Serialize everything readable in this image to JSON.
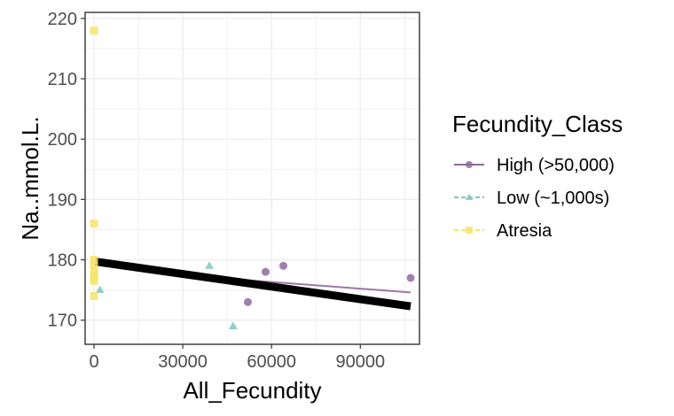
{
  "chart_data": {
    "type": "scatter",
    "xlabel": "All_Fecundity",
    "ylabel": "Na..mmol.L.",
    "xlim": [
      -3000,
      110000
    ],
    "ylim": [
      166,
      221
    ],
    "xticks": [
      0,
      30000,
      60000,
      90000
    ],
    "xtick_labels": [
      "0",
      "30000",
      "60000",
      "90000"
    ],
    "yticks": [
      170,
      180,
      190,
      200,
      210,
      220
    ],
    "ytick_labels": [
      "170",
      "180",
      "190",
      "200",
      "210",
      "220"
    ],
    "grid": true,
    "legend": {
      "title": "Fecundity_Class",
      "position": "right"
    },
    "series": [
      {
        "name": "High (>50,000)",
        "marker": "circle",
        "color": "#8e6a9e",
        "points": [
          {
            "x": 52000,
            "y": 173
          },
          {
            "x": 58000,
            "y": 178
          },
          {
            "x": 64000,
            "y": 179
          },
          {
            "x": 107000,
            "y": 177
          }
        ],
        "fit": {
          "x": [
            47000,
            107000
          ],
          "y": [
            176.8,
            174.6
          ]
        }
      },
      {
        "name": "Low (~1,000s)",
        "marker": "triangle",
        "color": "#7ec8c0",
        "points": [
          {
            "x": 2000,
            "y": 175
          },
          {
            "x": 39000,
            "y": 179
          },
          {
            "x": 47000,
            "y": 169
          }
        ],
        "fit": {
          "x": [
            45000,
            50000
          ],
          "y": [
            176.4,
            176.3
          ]
        }
      },
      {
        "name": "Atresia",
        "marker": "square",
        "color": "#f7e46b",
        "points": [
          {
            "x": 0,
            "y": 218
          },
          {
            "x": 0,
            "y": 186
          },
          {
            "x": 0,
            "y": 180
          },
          {
            "x": 0,
            "y": 179
          },
          {
            "x": 0,
            "y": 178
          },
          {
            "x": 0,
            "y": 177.5
          },
          {
            "x": 0,
            "y": 177
          },
          {
            "x": 0,
            "y": 176.5
          },
          {
            "x": 0,
            "y": 174
          }
        ],
        "fit": {
          "x": [
            -500,
            500
          ],
          "y": [
            177,
            177
          ]
        }
      }
    ],
    "overall_fit": {
      "color": "#000000",
      "x": [
        500,
        107000
      ],
      "y": [
        179.7,
        172.3
      ]
    }
  }
}
